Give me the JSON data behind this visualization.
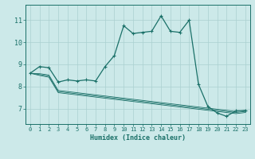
{
  "x": [
    0,
    1,
    2,
    3,
    4,
    5,
    6,
    7,
    8,
    9,
    10,
    11,
    12,
    13,
    14,
    15,
    16,
    17,
    18,
    19,
    20,
    21,
    22,
    23
  ],
  "y_main": [
    8.6,
    8.9,
    8.85,
    8.2,
    8.3,
    8.25,
    8.3,
    8.25,
    8.9,
    9.4,
    10.75,
    10.4,
    10.45,
    10.5,
    11.2,
    10.5,
    10.45,
    11.0,
    8.1,
    7.1,
    6.8,
    6.65,
    6.9,
    6.9
  ],
  "y_env1": [
    8.6,
    8.58,
    8.52,
    7.82,
    7.77,
    7.72,
    7.67,
    7.62,
    7.57,
    7.52,
    7.47,
    7.42,
    7.37,
    7.32,
    7.27,
    7.22,
    7.17,
    7.12,
    7.07,
    7.02,
    6.97,
    6.92,
    6.87,
    6.92
  ],
  "y_env2": [
    8.6,
    8.54,
    8.47,
    7.77,
    7.72,
    7.67,
    7.62,
    7.57,
    7.52,
    7.47,
    7.42,
    7.37,
    7.32,
    7.27,
    7.22,
    7.17,
    7.12,
    7.07,
    7.02,
    6.97,
    6.92,
    6.87,
    6.82,
    6.87
  ],
  "y_env3": [
    8.6,
    8.5,
    8.42,
    7.72,
    7.67,
    7.62,
    7.57,
    7.52,
    7.47,
    7.42,
    7.37,
    7.32,
    7.27,
    7.22,
    7.17,
    7.12,
    7.07,
    7.02,
    6.97,
    6.92,
    6.87,
    6.82,
    6.77,
    6.82
  ],
  "bg_color": "#cce9e9",
  "line_color": "#1a7068",
  "grid_color": "#aad0d0",
  "xlabel": "Humidex (Indice chaleur)",
  "yticks": [
    7,
    8,
    9,
    10,
    11
  ],
  "ylim": [
    6.3,
    11.7
  ],
  "xlim": [
    -0.5,
    23.5
  ]
}
